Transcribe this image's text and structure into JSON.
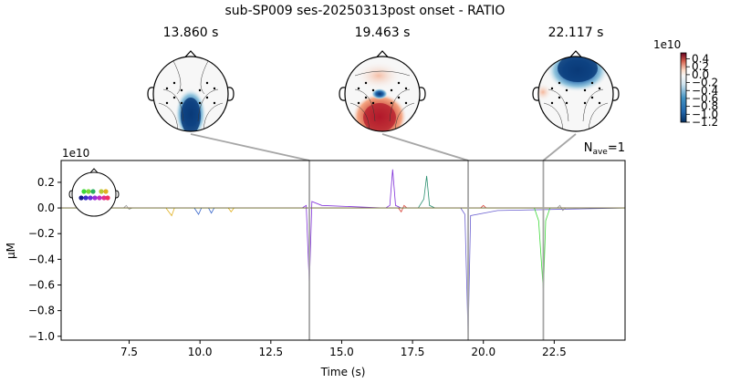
{
  "chart_data": {
    "type": "line",
    "title": "sub-SP009 ses-20250313post onset - RATIO",
    "xlabel": "Time (s)",
    "ylabel": "µM",
    "y_scale_label": "1e10",
    "xlim": [
      5.1,
      25.0
    ],
    "ylim": [
      -1.03,
      0.37
    ],
    "xticks": [
      7.5,
      10.0,
      12.5,
      15.0,
      17.5,
      20.0,
      22.5
    ],
    "xtick_labels": [
      "7.5",
      "10.0",
      "12.5",
      "15.0",
      "17.5",
      "20.0",
      "22.5"
    ],
    "yticks": [
      0.2,
      0.0,
      -0.2,
      -0.4,
      -0.6,
      -0.8,
      -1.0
    ],
    "ytick_labels": [
      "0.2",
      "0.0",
      "−0.2",
      "−0.4",
      "−0.6",
      "−0.8",
      "−1.0"
    ],
    "nave_label": "N",
    "nave_sub": "ave",
    "nave_value": "=1",
    "grid": false,
    "topomap_times": [
      13.86,
      19.463,
      22.117
    ],
    "topomap_titles": [
      "13.860 s",
      "19.463 s",
      "22.117 s"
    ],
    "colorbar": {
      "scale_label": "1e10",
      "min": -1.2,
      "max": 0.55,
      "ticks": [
        0.4,
        0.2,
        0.0,
        -0.2,
        -0.4,
        -0.6,
        -0.8,
        -1.0,
        -1.2
      ],
      "tick_labels": [
        "0.4",
        "0.2",
        "0.0",
        "−0.2",
        "−0.4",
        "−0.6",
        "−0.8",
        "−1.0",
        "−1.2"
      ]
    },
    "series": [
      {
        "color": "#7f2fd8",
        "points": [
          [
            5.1,
            0
          ],
          [
            13.6,
            0
          ],
          [
            13.75,
            0.02
          ],
          [
            13.86,
            -0.6
          ],
          [
            13.95,
            0.05
          ],
          [
            14.3,
            0.02
          ],
          [
            16.55,
            0
          ],
          [
            16.7,
            0.02
          ],
          [
            16.8,
            0.3
          ],
          [
            16.9,
            0.02
          ],
          [
            17.1,
            0
          ],
          [
            25,
            0
          ]
        ]
      },
      {
        "color": "#6a5fd0",
        "points": [
          [
            5.1,
            0
          ],
          [
            19.2,
            0
          ],
          [
            19.35,
            -0.05
          ],
          [
            19.463,
            -1.0
          ],
          [
            19.55,
            -0.06
          ],
          [
            20.5,
            -0.02
          ],
          [
            25,
            0
          ]
        ]
      },
      {
        "color": "#2a8f6f",
        "points": [
          [
            5.1,
            0
          ],
          [
            17.7,
            0
          ],
          [
            17.9,
            0.07
          ],
          [
            18.0,
            0.25
          ],
          [
            18.1,
            0.02
          ],
          [
            18.3,
            0
          ],
          [
            25,
            0
          ]
        ]
      },
      {
        "color": "#3cd838",
        "points": [
          [
            5.1,
            0
          ],
          [
            21.8,
            0
          ],
          [
            21.95,
            -0.1
          ],
          [
            22.117,
            -0.65
          ],
          [
            22.2,
            -0.1
          ],
          [
            22.35,
            0
          ],
          [
            25,
            0
          ]
        ]
      },
      {
        "color": "#e0b020",
        "points": [
          [
            5.1,
            0
          ],
          [
            8.8,
            0
          ],
          [
            9.0,
            -0.06
          ],
          [
            9.1,
            0
          ],
          [
            11.0,
            0
          ],
          [
            11.1,
            -0.03
          ],
          [
            11.2,
            0
          ],
          [
            25,
            0
          ]
        ]
      },
      {
        "color": "#3060c8",
        "points": [
          [
            5.1,
            0
          ],
          [
            9.8,
            0
          ],
          [
            9.95,
            -0.05
          ],
          [
            10.05,
            0
          ],
          [
            10.3,
            0
          ],
          [
            10.4,
            -0.04
          ],
          [
            10.5,
            0
          ],
          [
            25,
            0
          ]
        ]
      },
      {
        "color": "#d8443a",
        "points": [
          [
            5.1,
            0
          ],
          [
            17.0,
            0
          ],
          [
            17.1,
            -0.03
          ],
          [
            17.2,
            0.02
          ],
          [
            17.3,
            0
          ],
          [
            19.9,
            0
          ],
          [
            20.0,
            0.02
          ],
          [
            20.1,
            0
          ],
          [
            25,
            0
          ]
        ]
      },
      {
        "color": "#9a9a9a",
        "points": [
          [
            5.1,
            0
          ],
          [
            7.3,
            0
          ],
          [
            7.4,
            0.02
          ],
          [
            7.5,
            -0.01
          ],
          [
            7.6,
            0
          ],
          [
            22.6,
            0
          ],
          [
            22.7,
            0.02
          ],
          [
            22.8,
            -0.02
          ],
          [
            22.9,
            0
          ],
          [
            25,
            0
          ]
        ]
      },
      {
        "color": "#6b6f2a",
        "points": [
          [
            5.1,
            0
          ],
          [
            25,
            0
          ]
        ]
      }
    ]
  }
}
